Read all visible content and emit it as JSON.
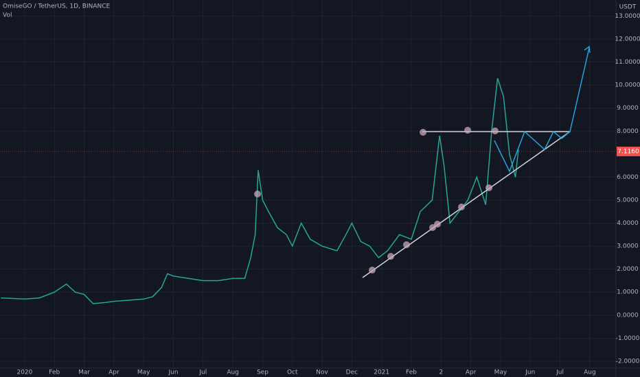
{
  "chart_data": {
    "type": "line",
    "title": "OmiseGO / TetherUS, 1D, BINANCE",
    "subtitle": "Vol",
    "y_axis_label": "USDT",
    "color": "#26a69a",
    "x": [
      -0.8,
      0,
      0.5,
      1.0,
      1.4,
      1.7,
      2.0,
      2.3,
      2.7,
      3.0,
      3.5,
      4.0,
      4.3,
      4.6,
      4.8,
      5.0,
      5.5,
      6.0,
      6.5,
      7.0,
      7.4,
      7.6,
      7.75,
      7.85,
      8.0,
      8.2,
      8.5,
      8.8,
      9.0,
      9.3,
      9.6,
      10.0,
      10.5,
      10.8,
      11.0,
      11.3,
      11.6,
      11.9,
      12.2,
      12.6,
      13.0,
      13.3,
      13.7,
      13.95,
      14.1,
      14.3,
      14.6,
      14.9,
      15.2,
      15.5,
      15.7,
      15.9,
      16.1,
      16.3,
      16.5,
      16.6
    ],
    "values": [
      0.75,
      0.7,
      0.75,
      1.0,
      1.35,
      1.0,
      0.9,
      0.5,
      0.55,
      0.6,
      0.65,
      0.7,
      0.8,
      1.2,
      1.8,
      1.7,
      1.6,
      1.5,
      1.5,
      1.6,
      1.6,
      2.5,
      3.5,
      6.3,
      5.0,
      4.5,
      3.8,
      3.5,
      3.0,
      4.0,
      3.3,
      3.0,
      2.8,
      3.5,
      4.0,
      3.2,
      3.0,
      2.5,
      2.8,
      3.5,
      3.3,
      4.5,
      5.0,
      7.8,
      6.5,
      4.0,
      4.5,
      5.0,
      6.0,
      4.8,
      8.0,
      10.3,
      9.5,
      7.0,
      6.0,
      7.2
    ],
    "last_price": 7.116,
    "last_price_label": "7.1160",
    "xlim": [
      -0.83,
      19.88
    ],
    "xticks": [
      {
        "value": 0,
        "label": "2020"
      },
      {
        "value": 1,
        "label": "Feb"
      },
      {
        "value": 2,
        "label": "Mar"
      },
      {
        "value": 3,
        "label": "Apr"
      },
      {
        "value": 4,
        "label": "May"
      },
      {
        "value": 5,
        "label": "Jun"
      },
      {
        "value": 6,
        "label": "Jul"
      },
      {
        "value": 7,
        "label": "Aug"
      },
      {
        "value": 8,
        "label": "Sep"
      },
      {
        "value": 9,
        "label": "Oct"
      },
      {
        "value": 10,
        "label": "Nov"
      },
      {
        "value": 11,
        "label": "Dec"
      },
      {
        "value": 12,
        "label": "2021"
      },
      {
        "value": 13,
        "label": "Feb"
      },
      {
        "value": 14,
        "label": "2"
      },
      {
        "value": 15,
        "label": "Apr"
      },
      {
        "value": 16,
        "label": "May"
      },
      {
        "value": 17,
        "label": "Jun"
      },
      {
        "value": 18,
        "label": "Jul"
      },
      {
        "value": 19,
        "label": "Aug"
      }
    ],
    "ylim": [
      -2.3,
      13.4
    ],
    "yticks": [
      {
        "value": 13,
        "label": "13.0000"
      },
      {
        "value": 12,
        "label": "12.0000"
      },
      {
        "value": 11,
        "label": "11.0000"
      },
      {
        "value": 10,
        "label": "10.0000"
      },
      {
        "value": 9,
        "label": "9.0000"
      },
      {
        "value": 8,
        "label": "8.0000"
      },
      {
        "value": 6,
        "label": "6.0000"
      },
      {
        "value": 5,
        "label": "5.0000"
      },
      {
        "value": 4,
        "label": "4.0000"
      },
      {
        "value": 3,
        "label": "3.0000"
      },
      {
        "value": 2,
        "label": "2.0000"
      },
      {
        "value": 1,
        "label": "1.0000"
      },
      {
        "value": 0,
        "label": "0.0000"
      },
      {
        "value": -1,
        "label": "-1.0000"
      },
      {
        "value": -2,
        "label": "-2.0000"
      }
    ],
    "grid": true
  }
}
